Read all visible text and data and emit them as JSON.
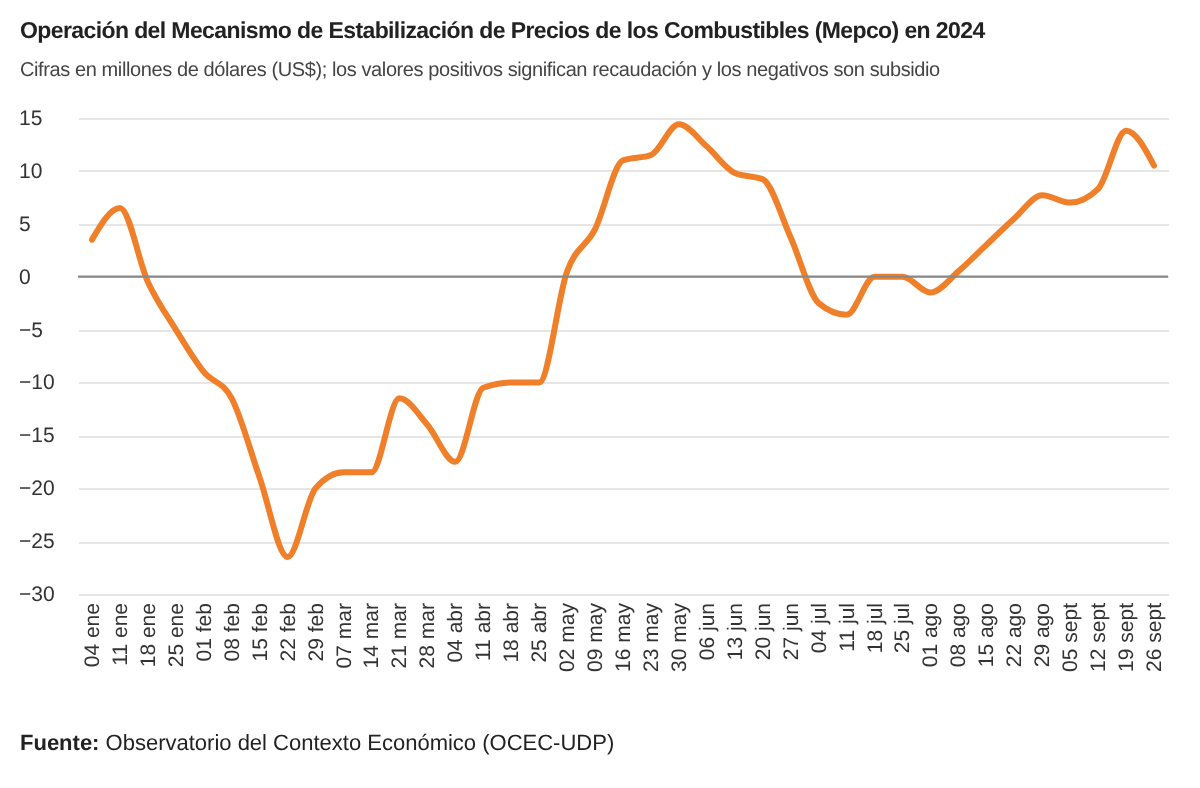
{
  "chart_data": {
    "type": "line",
    "title": "Operación del Mecanismo de Estabilización de Precios de los Combustibles (Mepco) en 2024",
    "subtitle": "Cifras en millones de dólares (US$); los valores positivos significan recaudación y los negativos son subsidio",
    "annotations": [
      "Fuente: Observatorio del Contexto Económico (OCEC-UDP)"
    ],
    "categories": [
      "04 ene",
      "11 ene",
      "18 ene",
      "25 ene",
      "01 feb",
      "08 feb",
      "15 feb",
      "22 feb",
      "29 feb",
      "07 mar",
      "14 mar",
      "21 mar",
      "28 mar",
      "04 abr",
      "11 abr",
      "18 abr",
      "25 abr",
      "02 may",
      "09 may",
      "16 may",
      "23 may",
      "30 may",
      "06 jun",
      "13 jun",
      "20 jun",
      "27 jun",
      "04 jul",
      "11 jul",
      "18 jul",
      "25 jul",
      "01 ago",
      "08 ago",
      "15 ago",
      "22 ago",
      "29 ago",
      "05 sept",
      "12 sept",
      "19 sept",
      "26 sept"
    ],
    "series": [
      {
        "color": "#f07f2a",
        "values": [
          3.5,
          6.5,
          -0.5,
          -5,
          -9,
          -11.5,
          -19,
          -26.5,
          -20,
          -18.5,
          -18.5,
          -11.5,
          -14,
          -17.5,
          -10.5,
          -10,
          -10,
          0.5,
          4.5,
          11,
          11.5,
          14.4,
          12.3,
          9.8,
          9.2,
          3.7,
          -2.5,
          -3.6,
          0,
          0,
          -1.5,
          0.5,
          3,
          5.5,
          7.7,
          7,
          8.3,
          13.8,
          10.5
        ]
      }
    ],
    "ylim": [
      -30,
      15
    ],
    "yticks": [
      -30,
      -25,
      -20,
      -15,
      -10,
      -5,
      0,
      5,
      10,
      15
    ],
    "grid": "y",
    "marker": "none",
    "line_style": "solid",
    "ref_lines": [
      {
        "axis": "y",
        "value": 0,
        "color": "#888888"
      }
    ]
  }
}
